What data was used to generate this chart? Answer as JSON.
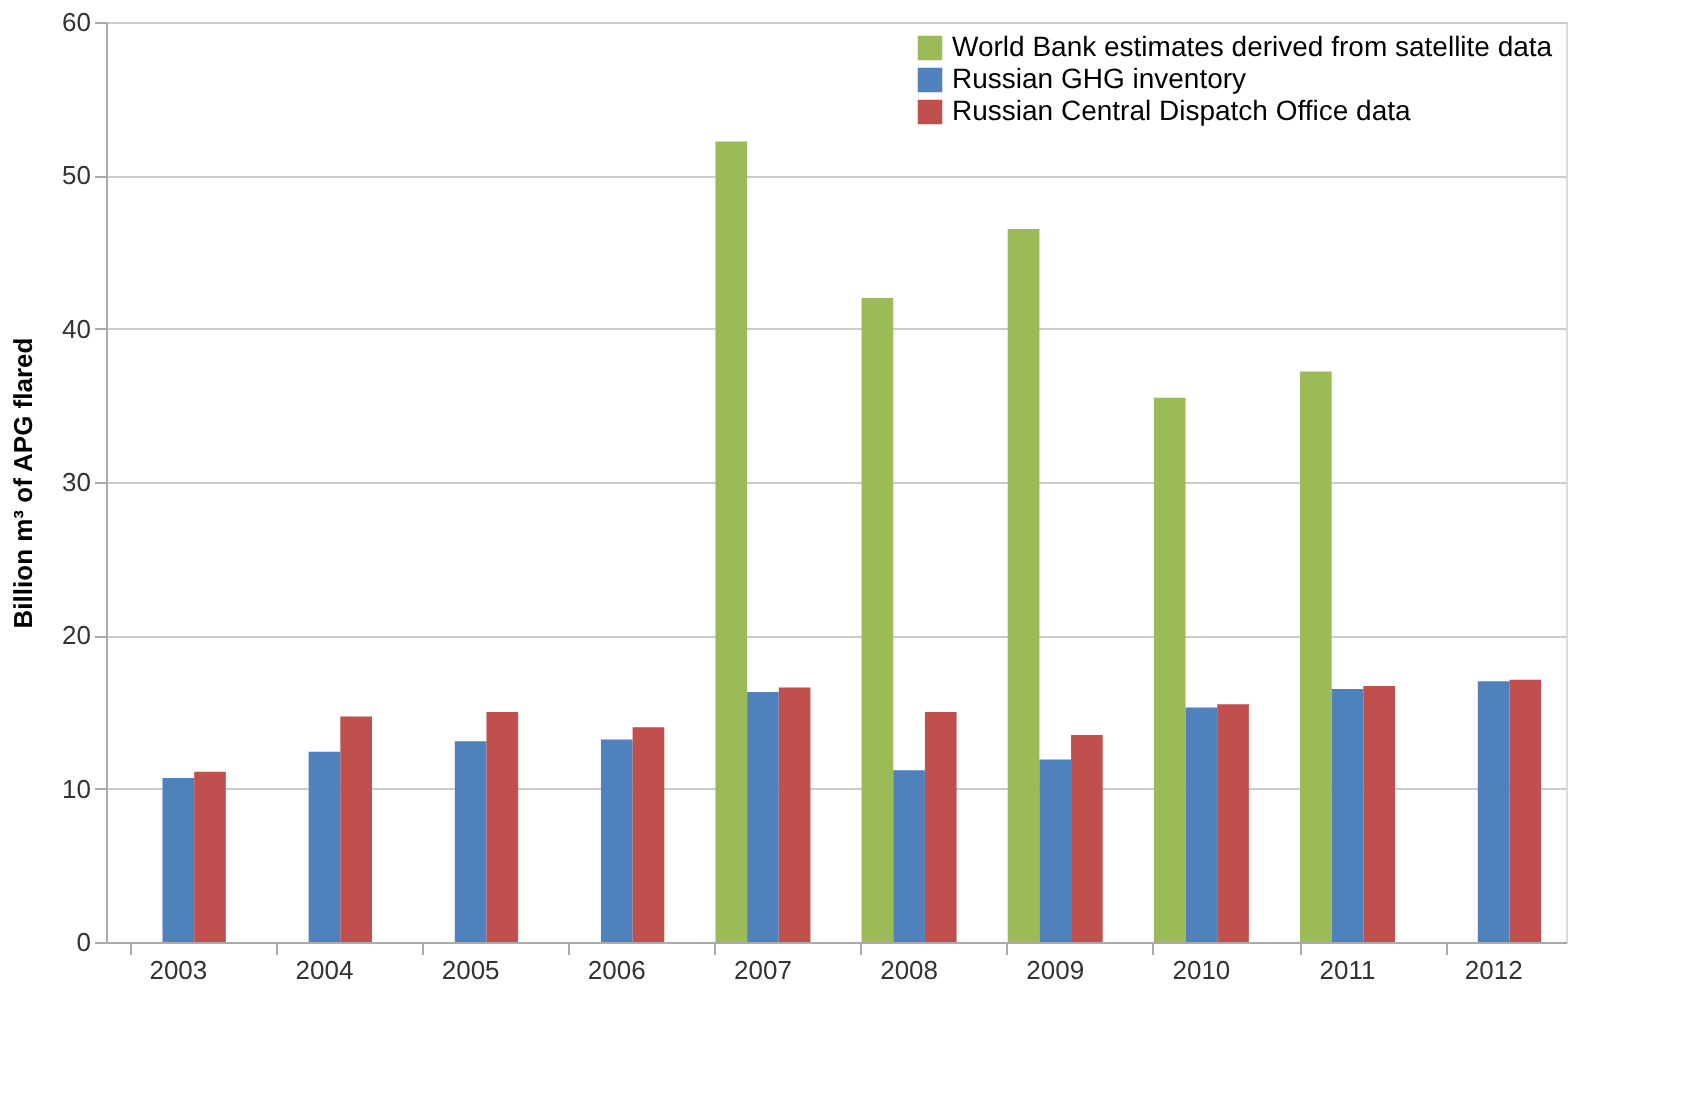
{
  "chart_data": {
    "type": "bar",
    "ylabel": "Billion m³ of APG flared",
    "categories": [
      "2003",
      "2004",
      "2005",
      "2006",
      "2007",
      "2008",
      "2009",
      "2010",
      "2011",
      "2012"
    ],
    "series": [
      {
        "name": "World Bank estimates derived from satellite data",
        "color": "#9bbb59",
        "values": [
          null,
          null,
          null,
          null,
          52.2,
          42.0,
          46.5,
          35.5,
          37.2,
          null
        ]
      },
      {
        "name": "Russian GHG inventory",
        "color": "#4f81bd",
        "values": [
          10.7,
          12.4,
          13.1,
          13.2,
          16.3,
          11.2,
          11.9,
          15.3,
          16.5,
          17.0
        ]
      },
      {
        "name": "Russian Central Dispatch Office data",
        "color": "#c0504d",
        "values": [
          11.1,
          14.7,
          15.0,
          14.0,
          16.6,
          15.0,
          13.5,
          15.5,
          16.7,
          17.1
        ]
      }
    ],
    "ylim": [
      0,
      60
    ],
    "yticks": [
      0,
      10,
      20,
      30,
      40,
      50,
      60
    ],
    "grid": "y",
    "legend": "top right"
  }
}
